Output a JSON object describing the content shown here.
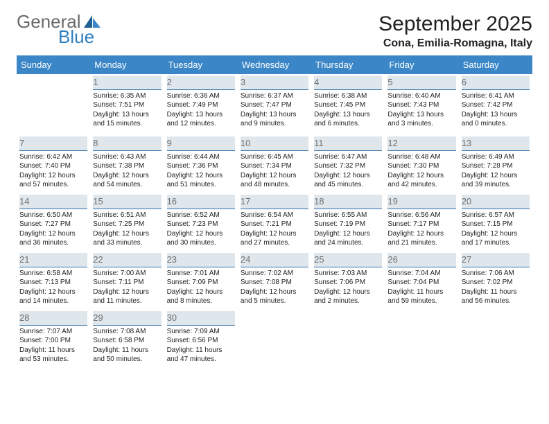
{
  "brand": {
    "word1": "General",
    "word2": "Blue"
  },
  "title": "September 2025",
  "subtitle": "Cona, Emilia-Romagna, Italy",
  "colors": {
    "header_bg": "#3b86c6",
    "header_text": "#ffffff",
    "daynum_bg": "#dfe7ed",
    "daynum_border": "#2f6fa6",
    "daynum_text": "#6f6f6f",
    "body_text": "#222222",
    "logo_gray": "#6a6a6a",
    "logo_blue": "#2f7fbf",
    "sail_dark": "#1f5f93",
    "sail_light": "#3b86c6"
  },
  "fontsizes": {
    "title": 30,
    "subtitle": 16,
    "weekday": 13,
    "daynum": 13,
    "cell": 10
  },
  "weekdays": [
    "Sunday",
    "Monday",
    "Tuesday",
    "Wednesday",
    "Thursday",
    "Friday",
    "Saturday"
  ],
  "start_weekday_index": 1,
  "days": [
    {
      "n": 1,
      "sunrise": "6:35 AM",
      "sunset": "7:51 PM",
      "daylight": "13 hours and 15 minutes."
    },
    {
      "n": 2,
      "sunrise": "6:36 AM",
      "sunset": "7:49 PM",
      "daylight": "13 hours and 12 minutes."
    },
    {
      "n": 3,
      "sunrise": "6:37 AM",
      "sunset": "7:47 PM",
      "daylight": "13 hours and 9 minutes."
    },
    {
      "n": 4,
      "sunrise": "6:38 AM",
      "sunset": "7:45 PM",
      "daylight": "13 hours and 6 minutes."
    },
    {
      "n": 5,
      "sunrise": "6:40 AM",
      "sunset": "7:43 PM",
      "daylight": "13 hours and 3 minutes."
    },
    {
      "n": 6,
      "sunrise": "6:41 AM",
      "sunset": "7:42 PM",
      "daylight": "13 hours and 0 minutes."
    },
    {
      "n": 7,
      "sunrise": "6:42 AM",
      "sunset": "7:40 PM",
      "daylight": "12 hours and 57 minutes."
    },
    {
      "n": 8,
      "sunrise": "6:43 AM",
      "sunset": "7:38 PM",
      "daylight": "12 hours and 54 minutes."
    },
    {
      "n": 9,
      "sunrise": "6:44 AM",
      "sunset": "7:36 PM",
      "daylight": "12 hours and 51 minutes."
    },
    {
      "n": 10,
      "sunrise": "6:45 AM",
      "sunset": "7:34 PM",
      "daylight": "12 hours and 48 minutes."
    },
    {
      "n": 11,
      "sunrise": "6:47 AM",
      "sunset": "7:32 PM",
      "daylight": "12 hours and 45 minutes."
    },
    {
      "n": 12,
      "sunrise": "6:48 AM",
      "sunset": "7:30 PM",
      "daylight": "12 hours and 42 minutes."
    },
    {
      "n": 13,
      "sunrise": "6:49 AM",
      "sunset": "7:28 PM",
      "daylight": "12 hours and 39 minutes."
    },
    {
      "n": 14,
      "sunrise": "6:50 AM",
      "sunset": "7:27 PM",
      "daylight": "12 hours and 36 minutes."
    },
    {
      "n": 15,
      "sunrise": "6:51 AM",
      "sunset": "7:25 PM",
      "daylight": "12 hours and 33 minutes."
    },
    {
      "n": 16,
      "sunrise": "6:52 AM",
      "sunset": "7:23 PM",
      "daylight": "12 hours and 30 minutes."
    },
    {
      "n": 17,
      "sunrise": "6:54 AM",
      "sunset": "7:21 PM",
      "daylight": "12 hours and 27 minutes."
    },
    {
      "n": 18,
      "sunrise": "6:55 AM",
      "sunset": "7:19 PM",
      "daylight": "12 hours and 24 minutes."
    },
    {
      "n": 19,
      "sunrise": "6:56 AM",
      "sunset": "7:17 PM",
      "daylight": "12 hours and 21 minutes."
    },
    {
      "n": 20,
      "sunrise": "6:57 AM",
      "sunset": "7:15 PM",
      "daylight": "12 hours and 17 minutes."
    },
    {
      "n": 21,
      "sunrise": "6:58 AM",
      "sunset": "7:13 PM",
      "daylight": "12 hours and 14 minutes."
    },
    {
      "n": 22,
      "sunrise": "7:00 AM",
      "sunset": "7:11 PM",
      "daylight": "12 hours and 11 minutes."
    },
    {
      "n": 23,
      "sunrise": "7:01 AM",
      "sunset": "7:09 PM",
      "daylight": "12 hours and 8 minutes."
    },
    {
      "n": 24,
      "sunrise": "7:02 AM",
      "sunset": "7:08 PM",
      "daylight": "12 hours and 5 minutes."
    },
    {
      "n": 25,
      "sunrise": "7:03 AM",
      "sunset": "7:06 PM",
      "daylight": "12 hours and 2 minutes."
    },
    {
      "n": 26,
      "sunrise": "7:04 AM",
      "sunset": "7:04 PM",
      "daylight": "11 hours and 59 minutes."
    },
    {
      "n": 27,
      "sunrise": "7:06 AM",
      "sunset": "7:02 PM",
      "daylight": "11 hours and 56 minutes."
    },
    {
      "n": 28,
      "sunrise": "7:07 AM",
      "sunset": "7:00 PM",
      "daylight": "11 hours and 53 minutes."
    },
    {
      "n": 29,
      "sunrise": "7:08 AM",
      "sunset": "6:58 PM",
      "daylight": "11 hours and 50 minutes."
    },
    {
      "n": 30,
      "sunrise": "7:09 AM",
      "sunset": "6:56 PM",
      "daylight": "11 hours and 47 minutes."
    }
  ],
  "labels": {
    "sunrise": "Sunrise:",
    "sunset": "Sunset:",
    "daylight": "Daylight:"
  }
}
